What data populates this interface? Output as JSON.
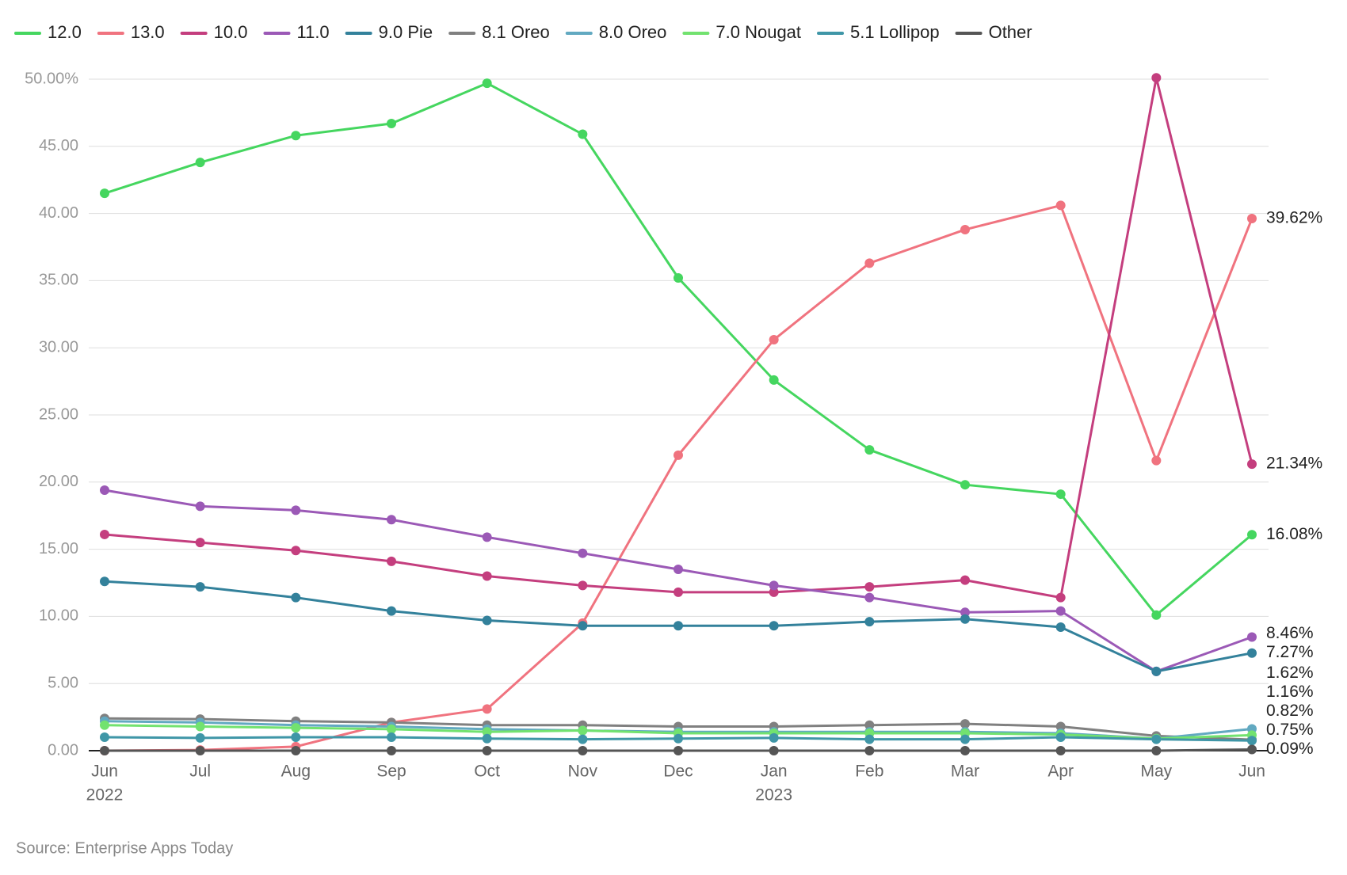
{
  "chart_data": {
    "type": "line",
    "categories": [
      "Jun",
      "Jul",
      "Aug",
      "Sep",
      "Oct",
      "Nov",
      "Dec",
      "Jan",
      "Feb",
      "Mar",
      "Apr",
      "May",
      "Jun"
    ],
    "category_years": [
      "2022",
      null,
      null,
      null,
      null,
      null,
      null,
      "2023",
      null,
      null,
      null,
      null,
      null
    ],
    "ylim": [
      0,
      50
    ],
    "yticks": [
      {
        "value": 0,
        "label": "0.00"
      },
      {
        "value": 5,
        "label": "5.00"
      },
      {
        "value": 10,
        "label": "10.00"
      },
      {
        "value": 15,
        "label": "15.00"
      },
      {
        "value": 20,
        "label": "20.00"
      },
      {
        "value": 25,
        "label": "25.00"
      },
      {
        "value": 30,
        "label": "30.00"
      },
      {
        "value": 35,
        "label": "35.00"
      },
      {
        "value": 40,
        "label": "40.00"
      },
      {
        "value": 45,
        "label": "45.00"
      },
      {
        "value": 50,
        "label": "50.00%"
      }
    ],
    "grid": true,
    "legend": "top",
    "source": "Source: Enterprise Apps Today",
    "series": [
      {
        "name": "12.0",
        "color": "#45d65f",
        "values": [
          41.5,
          43.8,
          45.8,
          46.7,
          49.7,
          45.9,
          35.2,
          27.6,
          22.4,
          19.8,
          19.1,
          10.1,
          16.08
        ],
        "value_labels": [
          null,
          null,
          null,
          null,
          null,
          null,
          null,
          null,
          null,
          null,
          null,
          null,
          "16.08%"
        ]
      },
      {
        "name": "13.0",
        "color": "#f0737f",
        "values": [
          0.0,
          0.05,
          0.3,
          2.1,
          3.1,
          9.5,
          22.0,
          30.6,
          36.3,
          38.8,
          40.6,
          21.6,
          39.62
        ],
        "value_labels": [
          null,
          null,
          null,
          null,
          null,
          null,
          null,
          null,
          null,
          null,
          null,
          null,
          "39.62%"
        ]
      },
      {
        "name": "10.0",
        "color": "#c43e7e",
        "values": [
          16.1,
          15.5,
          14.9,
          14.1,
          13.0,
          12.3,
          11.8,
          11.8,
          12.2,
          12.7,
          11.4,
          50.1,
          21.34
        ],
        "value_labels": [
          null,
          null,
          null,
          null,
          null,
          null,
          null,
          null,
          null,
          null,
          null,
          null,
          "21.34%"
        ]
      },
      {
        "name": "11.0",
        "color": "#9b59b6",
        "values": [
          19.4,
          18.2,
          17.9,
          17.2,
          15.9,
          14.7,
          13.5,
          12.3,
          11.4,
          10.3,
          10.4,
          5.9,
          8.46
        ],
        "value_labels": [
          null,
          null,
          null,
          null,
          null,
          null,
          null,
          null,
          null,
          null,
          null,
          null,
          "8.46%"
        ]
      },
      {
        "name": "9.0 Pie",
        "color": "#33819b",
        "values": [
          12.6,
          12.2,
          11.4,
          10.4,
          9.7,
          9.3,
          9.3,
          9.3,
          9.6,
          9.8,
          9.2,
          5.9,
          7.27
        ],
        "value_labels": [
          null,
          null,
          null,
          null,
          null,
          null,
          null,
          null,
          null,
          null,
          null,
          null,
          "7.27%"
        ]
      },
      {
        "name": "8.1 Oreo",
        "color": "#808080",
        "values": [
          2.4,
          2.35,
          2.2,
          2.1,
          1.9,
          1.9,
          1.8,
          1.8,
          1.9,
          2.0,
          1.8,
          1.1,
          0.82
        ],
        "value_labels": [
          null,
          null,
          null,
          null,
          null,
          null,
          null,
          null,
          null,
          null,
          null,
          null,
          "0.82%"
        ]
      },
      {
        "name": "8.0 Oreo",
        "color": "#62a9c1",
        "values": [
          2.2,
          2.1,
          1.9,
          1.8,
          1.6,
          1.5,
          1.4,
          1.4,
          1.4,
          1.4,
          1.3,
          0.9,
          1.62
        ],
        "value_labels": [
          null,
          null,
          null,
          null,
          null,
          null,
          null,
          null,
          null,
          null,
          null,
          null,
          "1.62%"
        ]
      },
      {
        "name": "7.0 Nougat",
        "color": "#72e26f",
        "values": [
          1.9,
          1.8,
          1.7,
          1.6,
          1.4,
          1.5,
          1.3,
          1.3,
          1.3,
          1.3,
          1.2,
          0.9,
          1.16
        ],
        "value_labels": [
          null,
          null,
          null,
          null,
          null,
          null,
          null,
          null,
          null,
          null,
          null,
          null,
          "1.16%"
        ]
      },
      {
        "name": "5.1 Lollipop",
        "color": "#3f96a7",
        "values": [
          1.0,
          0.95,
          1.0,
          1.0,
          0.9,
          0.85,
          0.9,
          0.95,
          0.85,
          0.85,
          1.0,
          0.85,
          0.75
        ],
        "value_labels": [
          null,
          null,
          null,
          null,
          null,
          null,
          null,
          null,
          null,
          null,
          null,
          null,
          "0.75%"
        ]
      },
      {
        "name": "Other",
        "color": "#555555",
        "values": [
          0,
          0,
          0,
          0,
          0,
          0,
          0,
          0,
          0,
          0,
          0,
          0,
          0.09
        ],
        "value_labels": [
          null,
          null,
          null,
          null,
          null,
          null,
          null,
          null,
          null,
          null,
          null,
          null,
          "0.09%"
        ]
      }
    ]
  }
}
